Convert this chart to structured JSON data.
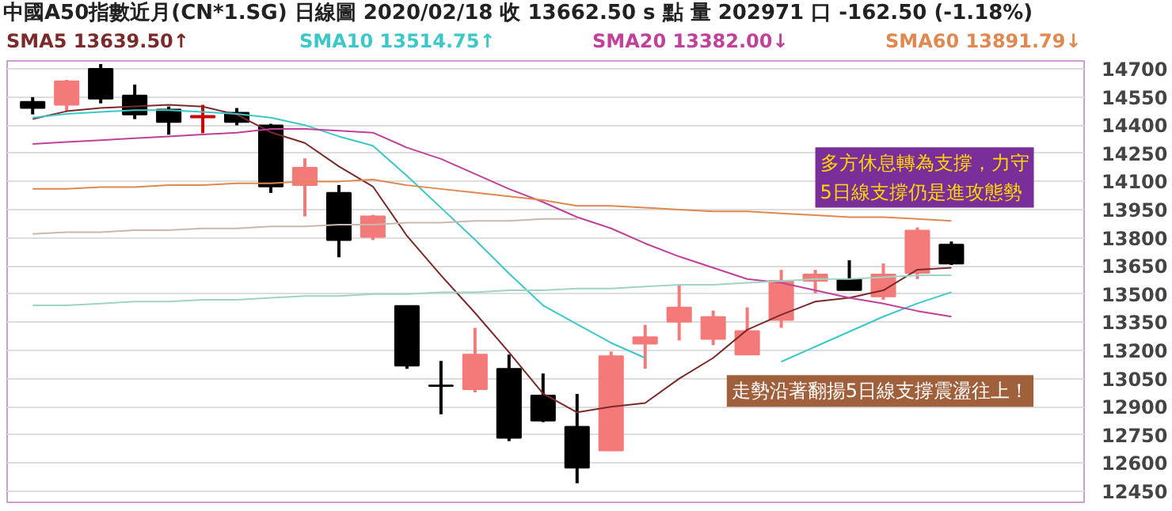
{
  "chart_data": {
    "type": "candlestick",
    "title": "中國A50指數近月(CN*1.SG)    日線圖  2020/02/18  收 13662.50 s 點  量 202971 口  -162.50 (-1.18%)",
    "categories": [
      null,
      null,
      null,
      null,
      null,
      null,
      null,
      null,
      null,
      null,
      null,
      null,
      null,
      null,
      null,
      null,
      null,
      null,
      null,
      null,
      null,
      null,
      null,
      null,
      null,
      null,
      null,
      null
    ],
    "ohlc": [
      [
        14524,
        14549,
        14457,
        14491
      ],
      [
        14508,
        14641,
        14474,
        14633
      ],
      [
        14700,
        14725,
        14516,
        14541
      ],
      [
        14558,
        14616,
        14432,
        14457
      ],
      [
        14483,
        14499,
        14349,
        14416
      ],
      [
        14441,
        14508,
        14357,
        14449
      ],
      [
        14466,
        14491,
        14399,
        14416
      ],
      [
        14399,
        14407,
        14039,
        14073
      ],
      [
        14081,
        14223,
        13914,
        14173
      ],
      [
        14039,
        14081,
        13696,
        13788
      ],
      [
        13805,
        13922,
        13788,
        13914
      ],
      [
        13437,
        13437,
        13102,
        13119
      ],
      [
        13014,
        13144,
        12860,
        13010
      ],
      [
        12994,
        13320,
        12977,
        13178
      ],
      [
        13102,
        13178,
        12717,
        12734
      ],
      [
        12960,
        13077,
        12818,
        12826
      ],
      [
        12793,
        12968,
        12492,
        12575
      ],
      [
        12667,
        13194,
        12667,
        13169
      ],
      [
        13236,
        13336,
        13102,
        13270
      ],
      [
        13353,
        13546,
        13253,
        13429
      ],
      [
        13261,
        13412,
        13228,
        13378
      ],
      [
        13178,
        13429,
        13178,
        13303
      ],
      [
        13362,
        13629,
        13320,
        13571
      ],
      [
        13571,
        13629,
        13504,
        13604
      ],
      [
        13579,
        13680,
        13521,
        13521
      ],
      [
        13487,
        13663,
        13470,
        13604
      ],
      [
        13613,
        13855,
        13580,
        13838
      ],
      [
        13763,
        13780,
        13655,
        13662.5
      ]
    ],
    "colors": [
      "#000000",
      "#f47a7a",
      "#000000",
      "#000000",
      "#000000",
      "#cc0000",
      "#000000",
      "#000000",
      "#f47a7a",
      "#000000",
      "#f47a7a",
      "#000000",
      "#000000",
      "#f47a7a",
      "#000000",
      "#000000",
      "#000000",
      "#f47a7a",
      "#f47a7a",
      "#f47a7a",
      "#f47a7a",
      "#f47a7a",
      "#f47a7a",
      "#f47a7a",
      "#000000",
      "#f47a7a",
      "#f47a7a",
      "#000000"
    ],
    "series": [
      {
        "name": "SMA5 13639.50↑",
        "color": "#7b2a2a",
        "type": "line",
        "values": [
          14432,
          14474,
          14491,
          14500,
          14508,
          14499,
          14456,
          14362,
          14305,
          14180,
          14073,
          13810,
          13600,
          13400,
          13190,
          12970,
          12870,
          12900,
          12920,
          13050,
          13160,
          13310,
          13390,
          13460,
          13480,
          13520,
          13630,
          13640
        ]
      },
      {
        "name": "SMA10 13514.75↑",
        "color": "#3cc8c8",
        "type": "line",
        "values": [
          14440,
          14460,
          14470,
          14480,
          14480,
          14470,
          14460,
          14440,
          14400,
          14340,
          14290,
          14130,
          13960,
          13790,
          13610,
          13440,
          13340,
          13240,
          13160,
          null,
          null,
          null,
          13140,
          13220,
          13300,
          13380,
          13450,
          13510
        ]
      },
      {
        "name": "SMA20 13382.00↓",
        "color": "#c0409a",
        "type": "line",
        "values": [
          14300,
          14310,
          14320,
          14330,
          14340,
          14350,
          14360,
          14380,
          14380,
          14370,
          14360,
          14280,
          14220,
          14140,
          14060,
          13990,
          13910,
          13850,
          13770,
          13700,
          13640,
          13580,
          13560,
          13520,
          13480,
          13450,
          13410,
          13380
        ]
      },
      {
        "name": "SMA60 13891.79↓",
        "color": "#e08850",
        "type": "line",
        "values": [
          14060,
          14060,
          14070,
          14070,
          14080,
          14080,
          14090,
          14090,
          14100,
          14100,
          14110,
          14080,
          14060,
          14040,
          14020,
          14000,
          13970,
          13970,
          13960,
          13950,
          13940,
          13940,
          13930,
          13920,
          13910,
          13910,
          13900,
          13890
        ]
      },
      {
        "color": "#9fd4c4",
        "type": "line",
        "values": [
          13440,
          13440,
          13450,
          13460,
          13460,
          13470,
          13470,
          13480,
          13490,
          13490,
          13500,
          13500,
          13510,
          13510,
          13520,
          13520,
          13530,
          13530,
          13540,
          13550,
          13550,
          13560,
          13570,
          13580,
          13580,
          13590,
          13600,
          13600
        ]
      },
      {
        "color": "#c8b8b0",
        "type": "line",
        "values": [
          13820,
          13830,
          13830,
          13840,
          13840,
          13850,
          13850,
          13860,
          13860,
          13870,
          13870,
          13880,
          13880,
          13890,
          13890,
          13900,
          13900,
          null,
          null,
          null,
          null,
          null,
          null,
          null,
          null,
          null,
          null,
          null
        ]
      }
    ],
    "ylim": [
      12391,
      14742
    ],
    "yticks": [
      12450,
      12600,
      12750,
      12900,
      13050,
      13200,
      13350,
      13500,
      13650,
      13800,
      13950,
      14100,
      14250,
      14400,
      14550,
      14700
    ],
    "grid": "y",
    "annotations": [
      "多方休息轉為支撐，力守\n5日線支撐仍是進攻態勢",
      "走勢沿著翻揚5日線支撐震盪往上！"
    ]
  }
}
